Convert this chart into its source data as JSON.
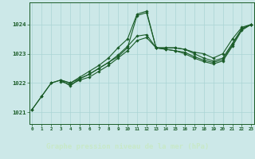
{
  "title": "Graphe pression niveau de la mer (hPa)",
  "bg_color": "#cce8e8",
  "plot_bg_color": "#cce8e8",
  "label_bg_color": "#2d6b3c",
  "grid_color": "#aad4d4",
  "line_color": "#1a5c28",
  "title_color": "#c8e8c8",
  "ylim": [
    1020.6,
    1024.75
  ],
  "xlim": [
    -0.3,
    23.3
  ],
  "yticks": [
    1021,
    1022,
    1023,
    1024
  ],
  "xticks": [
    0,
    1,
    2,
    3,
    4,
    5,
    6,
    7,
    8,
    9,
    10,
    11,
    12,
    13,
    14,
    15,
    16,
    17,
    18,
    19,
    20,
    21,
    22,
    23
  ],
  "line1_x": [
    0,
    1,
    2,
    3,
    4,
    5,
    6,
    7,
    8,
    9,
    10,
    11,
    12,
    13,
    14,
    15,
    16,
    17,
    18,
    19,
    20,
    21,
    22,
    23
  ],
  "line1_y": [
    1021.1,
    1021.55,
    1022.0,
    1022.1,
    1022.0,
    1022.2,
    1022.4,
    1022.6,
    1022.85,
    1023.2,
    1023.5,
    1024.35,
    1024.45,
    1023.2,
    1023.2,
    1023.2,
    1023.15,
    1023.05,
    1023.0,
    1022.85,
    1023.0,
    1023.5,
    1023.9,
    1024.0
  ],
  "line2_x": [
    0,
    1,
    2,
    3,
    4,
    5,
    6,
    7,
    8,
    9,
    10,
    11,
    12,
    13,
    14,
    15,
    16,
    17,
    18,
    19,
    20,
    21,
    22,
    23
  ],
  "line2_y": [
    1021.1,
    1021.55,
    1022.0,
    1022.1,
    1021.9,
    1022.15,
    1022.3,
    1022.5,
    1022.7,
    1022.9,
    1023.2,
    1024.3,
    1024.4,
    1023.2,
    1023.2,
    1023.2,
    1023.15,
    1023.0,
    1022.85,
    1022.75,
    1022.85,
    1023.35,
    1023.85,
    1024.0
  ],
  "line3_x": [
    3,
    4,
    5,
    6,
    7,
    8,
    9,
    10,
    11,
    12,
    13,
    14,
    15,
    16,
    17,
    18,
    19,
    20,
    21,
    22,
    23
  ],
  "line3_y": [
    1022.1,
    1022.0,
    1022.15,
    1022.3,
    1022.5,
    1022.7,
    1022.95,
    1023.25,
    1023.6,
    1023.65,
    1023.2,
    1023.15,
    1023.1,
    1023.05,
    1022.9,
    1022.78,
    1022.7,
    1022.8,
    1023.3,
    1023.85,
    1024.0
  ],
  "line4_x": [
    3,
    4,
    5,
    6,
    7,
    8,
    9,
    10,
    11,
    12,
    13,
    14,
    15,
    16,
    17,
    18,
    19,
    20,
    21,
    22,
    23
  ],
  "line4_y": [
    1022.05,
    1021.95,
    1022.1,
    1022.2,
    1022.4,
    1022.6,
    1022.85,
    1023.1,
    1023.45,
    1023.55,
    1023.2,
    1023.15,
    1023.1,
    1023.0,
    1022.85,
    1022.73,
    1022.65,
    1022.75,
    1023.25,
    1023.8,
    1024.0
  ],
  "marker_style": "D",
  "marker_size": 1.8,
  "line_width": 0.8
}
